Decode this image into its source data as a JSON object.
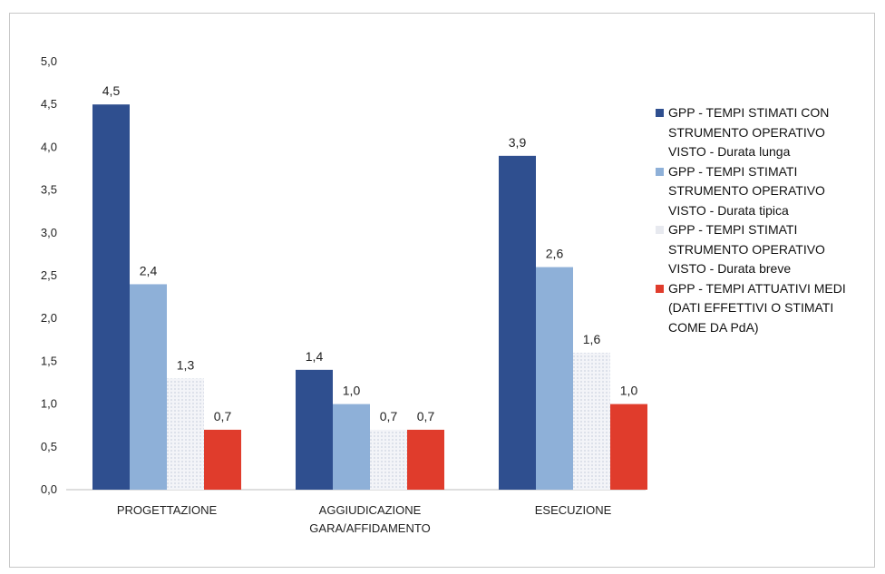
{
  "chart_data": {
    "type": "bar",
    "categories": [
      "PROGETTAZIONE",
      "AGGIUDICAZIONE GARA/AFFIDAMENTO",
      "ESECUZIONE"
    ],
    "category_lines": [
      [
        "PROGETTAZIONE"
      ],
      [
        "AGGIUDICAZIONE",
        "GARA/AFFIDAMENTO"
      ],
      [
        "ESECUZIONE"
      ]
    ],
    "series": [
      {
        "name": "GPP - TEMPI STIMATI CON STRUMENTO OPERATIVO VISTO - Durata lunga",
        "values": [
          4.5,
          1.4,
          3.9
        ],
        "labels": [
          "4,5",
          "1,4",
          "3,9"
        ],
        "color": "#2f4f8f"
      },
      {
        "name": "GPP - TEMPI STIMATI STRUMENTO OPERATIVO VISTO - Durata tipica",
        "values": [
          2.4,
          1.0,
          2.6
        ],
        "labels": [
          "2,4",
          "1,0",
          "2,6"
        ],
        "color": "#8eb0d8"
      },
      {
        "name": "GPP - TEMPI STIMATI STRUMENTO OPERATIVO VISTO - Durata breve",
        "values": [
          1.3,
          0.7,
          1.6
        ],
        "labels": [
          "1,3",
          "0,7",
          "1,6"
        ],
        "color": "#eef0f6"
      },
      {
        "name": "GPP - TEMPI ATTUATIVI MEDI (DATI EFFETTIVI O STIMATI COME DA PdA)",
        "values": [
          0.7,
          0.7,
          1.0
        ],
        "labels": [
          "0,7",
          "0,7",
          "1,0"
        ],
        "color": "#e03c2c"
      }
    ],
    "yticks": [
      0,
      0.5,
      1.0,
      1.5,
      2.0,
      2.5,
      3.0,
      3.5,
      4.0,
      4.5,
      5.0
    ],
    "ytick_labels": [
      "0,0",
      "0,5",
      "1,0",
      "1,5",
      "2,0",
      "2,5",
      "3,0",
      "3,5",
      "4,0",
      "4,5",
      "5,0"
    ],
    "ylim": [
      0,
      5
    ],
    "legend_position": "right",
    "legend_lines": [
      [
        "GPP - TEMPI STIMATI CON",
        "STRUMENTO OPERATIVO",
        "VISTO - Durata lunga"
      ],
      [
        "GPP - TEMPI STIMATI",
        "STRUMENTO OPERATIVO",
        "VISTO - Durata tipica"
      ],
      [
        "GPP - TEMPI STIMATI",
        "STRUMENTO OPERATIVO",
        "VISTO - Durata breve"
      ],
      [
        "GPP - TEMPI ATTUATIVI MEDI",
        "(DATI EFFETTIVI O STIMATI",
        "COME DA PdA)"
      ]
    ],
    "grid": false
  }
}
